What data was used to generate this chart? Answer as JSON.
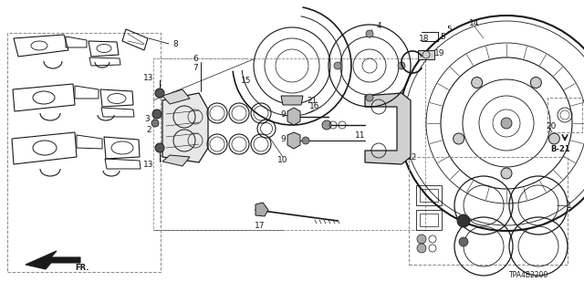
{
  "bg_color": "#ffffff",
  "line_color": "#1a1a1a",
  "gray_color": "#888888",
  "part_code": "TPA4B2200",
  "ref_code": "B-21",
  "figsize": [
    6.4,
    3.2
  ],
  "dpi": 100
}
